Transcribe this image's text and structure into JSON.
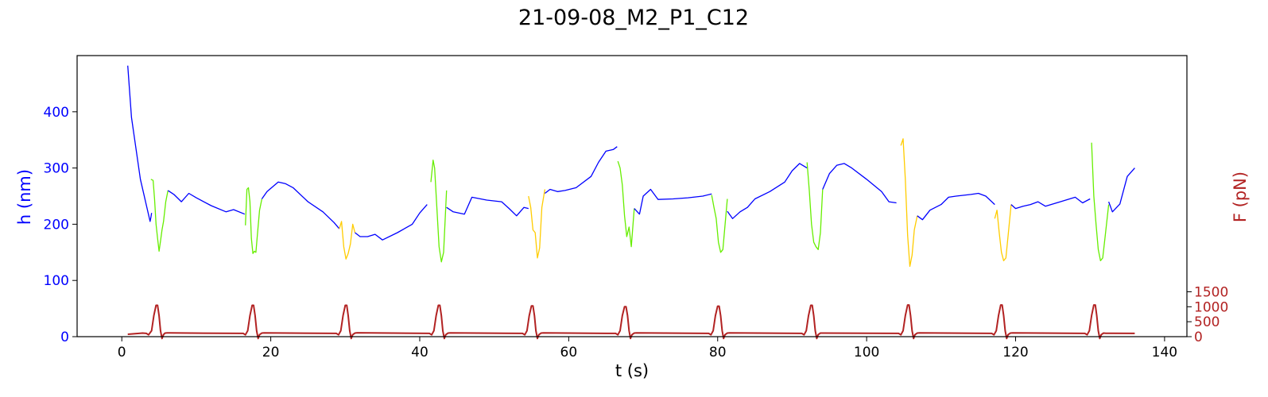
{
  "chart_data": {
    "type": "line",
    "title": "21-09-08_M2_P1_C12",
    "xlabel": "t (s)",
    "ylabel_left": "h (nm)",
    "ylabel_right": "F (pN)",
    "xlim": [
      -6,
      143
    ],
    "ylim_left": [
      0,
      500
    ],
    "ylim_right": [
      0,
      9400
    ],
    "xticks": [
      0,
      20,
      40,
      60,
      80,
      100,
      120,
      140
    ],
    "yticks_left": [
      0,
      100,
      200,
      300,
      400
    ],
    "yticks_right": [
      0,
      500,
      1000,
      1500
    ],
    "grid": false,
    "colors": {
      "h_baseline": "#0000ff",
      "h_compression_green": "#66ee00",
      "h_compression_yellow": "#ffcc00",
      "force": "#b22222",
      "left_axis_text": "#0000ff",
      "right_axis_text": "#b22222"
    },
    "series": [
      {
        "axis": "left",
        "color": "#0000ff",
        "x": [
          0.8,
          1.3,
          2.5,
          3.8,
          3.9,
          4.0
        ],
        "y": [
          482,
          390,
          280,
          205,
          212,
          220
        ]
      },
      {
        "axis": "left",
        "color": "#66ee00",
        "x": [
          3.9,
          4.2,
          4.4,
          4.6,
          4.8,
          5.0,
          5.2,
          5.4,
          5.6,
          5.9,
          6.2
        ],
        "y": [
          280,
          278,
          245,
          200,
          175,
          152,
          170,
          190,
          205,
          240,
          260
        ]
      },
      {
        "axis": "left",
        "color": "#0000ff",
        "x": [
          6.2,
          7,
          8,
          9,
          10,
          12,
          14,
          15,
          16.5
        ],
        "y": [
          260,
          253,
          240,
          255,
          247,
          233,
          222,
          226,
          218
        ]
      },
      {
        "axis": "left",
        "color": "#66ee00",
        "x": [
          16.6,
          16.8,
          17.0,
          17.2,
          17.4,
          17.6,
          17.8,
          18.0,
          18.2,
          18.5,
          18.8
        ],
        "y": [
          198,
          262,
          265,
          240,
          175,
          148,
          152,
          150,
          180,
          225,
          245
        ]
      },
      {
        "axis": "left",
        "color": "#0000ff",
        "x": [
          18.8,
          19.5,
          21,
          22,
          23,
          25,
          27,
          28.5,
          29.2
        ],
        "y": [
          245,
          258,
          275,
          272,
          265,
          240,
          222,
          203,
          192
        ]
      },
      {
        "axis": "left",
        "color": "#ffcc00",
        "x": [
          29.2,
          29.5,
          29.8,
          30.1,
          30.4,
          30.7,
          31.0,
          31.3
        ],
        "y": [
          192,
          205,
          160,
          138,
          148,
          165,
          200,
          185
        ]
      },
      {
        "axis": "left",
        "color": "#0000ff",
        "x": [
          31.3,
          32,
          33,
          34,
          35,
          37,
          39,
          40,
          41
        ],
        "y": [
          185,
          178,
          178,
          182,
          172,
          185,
          200,
          220,
          235
        ]
      },
      {
        "axis": "left",
        "color": "#66ee00",
        "x": [
          41.5,
          41.8,
          42.0,
          42.3,
          42.6,
          42.9,
          43.2,
          43.6
        ],
        "y": [
          275,
          314,
          300,
          230,
          160,
          133,
          150,
          260
        ]
      },
      {
        "axis": "left",
        "color": "#0000ff",
        "x": [
          43.6,
          44.5,
          46,
          47,
          49,
          51,
          52,
          53,
          54,
          54.6
        ],
        "y": [
          230,
          222,
          218,
          248,
          243,
          240,
          228,
          215,
          230,
          228
        ]
      },
      {
        "axis": "left",
        "color": "#ffcc00",
        "x": [
          54.6,
          54.9,
          55.2,
          55.5,
          55.8,
          56.1,
          56.4,
          56.8
        ],
        "y": [
          250,
          230,
          190,
          185,
          140,
          158,
          230,
          262
        ]
      },
      {
        "axis": "left",
        "color": "#0000ff",
        "x": [
          56.8,
          57.5,
          58.5,
          59.5,
          61,
          63,
          64,
          65,
          66,
          66.5
        ],
        "y": [
          255,
          262,
          258,
          260,
          265,
          285,
          310,
          330,
          333,
          338
        ]
      },
      {
        "axis": "left",
        "color": "#66ee00",
        "x": [
          66.6,
          66.9,
          67.2,
          67.5,
          67.8,
          68.1,
          68.4,
          68.8
        ],
        "y": [
          312,
          300,
          270,
          215,
          178,
          195,
          160,
          228
        ]
      },
      {
        "axis": "left",
        "color": "#0000ff",
        "x": [
          68.8,
          69.5,
          70,
          71,
          72,
          74,
          76,
          78,
          79.2
        ],
        "y": [
          228,
          218,
          250,
          262,
          244,
          245,
          247,
          250,
          254
        ]
      },
      {
        "axis": "left",
        "color": "#66ee00",
        "x": [
          79.2,
          79.5,
          79.8,
          80.1,
          80.4,
          80.7,
          81.0,
          81.3
        ],
        "y": [
          252,
          230,
          210,
          168,
          150,
          155,
          200,
          245
        ]
      },
      {
        "axis": "left",
        "color": "#0000ff",
        "x": [
          81.3,
          82,
          83,
          84,
          85,
          87,
          89,
          90,
          91,
          92
        ],
        "y": [
          223,
          210,
          222,
          230,
          245,
          258,
          275,
          295,
          308,
          300
        ]
      },
      {
        "axis": "left",
        "color": "#66ee00",
        "x": [
          92.0,
          92.3,
          92.6,
          92.9,
          93.2,
          93.5,
          93.8,
          94.1
        ],
        "y": [
          310,
          260,
          200,
          168,
          160,
          155,
          185,
          262
        ]
      },
      {
        "axis": "left",
        "color": "#0000ff",
        "x": [
          94.1,
          95,
          96,
          97,
          98,
          100,
          102,
          103,
          104
        ],
        "y": [
          262,
          290,
          305,
          308,
          300,
          280,
          258,
          240,
          238
        ]
      },
      {
        "axis": "left",
        "color": "#ffcc00",
        "x": [
          104.6,
          104.9,
          105.2,
          105.5,
          105.8,
          106.1,
          106.4,
          106.8
        ],
        "y": [
          340,
          352,
          280,
          180,
          125,
          145,
          190,
          215
        ]
      },
      {
        "axis": "left",
        "color": "#0000ff",
        "x": [
          106.8,
          107.5,
          108.5,
          110,
          111,
          112,
          114,
          115,
          116,
          117.2
        ],
        "y": [
          215,
          208,
          225,
          235,
          248,
          250,
          253,
          255,
          250,
          235
        ]
      },
      {
        "axis": "left",
        "color": "#ffcc00",
        "x": [
          117.2,
          117.5,
          117.8,
          118.1,
          118.4,
          118.7,
          119.0,
          119.4
        ],
        "y": [
          210,
          225,
          185,
          150,
          135,
          140,
          180,
          235
        ]
      },
      {
        "axis": "left",
        "color": "#0000ff",
        "x": [
          119.4,
          120,
          121,
          122,
          123,
          124,
          126,
          128,
          129,
          130
        ],
        "y": [
          235,
          228,
          232,
          235,
          240,
          232,
          240,
          248,
          238,
          245
        ]
      },
      {
        "axis": "left",
        "color": "#66ee00",
        "x": [
          130.2,
          130.5,
          130.8,
          131.1,
          131.4,
          131.7,
          132.0,
          132.5
        ],
        "y": [
          345,
          250,
          200,
          155,
          135,
          140,
          175,
          235
        ]
      },
      {
        "axis": "left",
        "color": "#0000ff",
        "x": [
          132.5,
          133,
          134,
          135,
          136
        ],
        "y": [
          240,
          222,
          236,
          285,
          300
        ]
      },
      {
        "axis": "right",
        "color": "#b22222",
        "x": [
          0.8,
          2.8,
          3.3,
          3.6,
          4.0,
          4.3,
          4.6,
          4.8,
          5.0,
          5.2,
          5.4,
          5.6,
          5.8,
          6.1,
          6.4,
          16.3,
          16.6,
          16.9,
          17.2,
          17.5,
          17.7,
          17.9,
          18.1,
          18.3,
          18.5,
          18.8,
          19.1,
          28.8,
          29.1,
          29.4,
          29.7,
          30.0,
          30.2,
          30.4,
          30.6,
          30.8,
          31.0,
          31.3,
          31.6,
          41.3,
          41.6,
          41.9,
          42.2,
          42.5,
          42.7,
          42.9,
          43.1,
          43.3,
          43.5,
          43.8,
          44.1,
          53.8,
          54.1,
          54.4,
          54.7,
          55.0,
          55.2,
          55.4,
          55.6,
          55.8,
          56.0,
          56.3,
          56.6,
          66.3,
          66.6,
          66.9,
          67.2,
          67.5,
          67.7,
          67.9,
          68.1,
          68.3,
          68.5,
          68.8,
          69.1,
          78.8,
          79.1,
          79.4,
          79.7,
          80.0,
          80.2,
          80.4,
          80.6,
          80.8,
          81.0,
          81.3,
          81.6,
          91.3,
          91.6,
          91.9,
          92.2,
          92.5,
          92.7,
          92.9,
          93.1,
          93.3,
          93.5,
          93.8,
          94.1,
          104.3,
          104.6,
          104.9,
          105.2,
          105.5,
          105.7,
          105.9,
          106.1,
          106.3,
          106.5,
          106.8,
          107.1,
          116.8,
          117.1,
          117.4,
          117.7,
          118.0,
          118.2,
          118.4,
          118.6,
          118.8,
          119.0,
          119.3,
          119.6,
          129.3,
          129.6,
          129.9,
          130.2,
          130.5,
          130.7,
          130.9,
          131.1,
          131.3,
          131.5,
          131.8,
          132.1,
          136
        ],
        "y": [
          80,
          120,
          110,
          60,
          200,
          700,
          1050,
          1050,
          700,
          200,
          -60,
          70,
          120,
          125,
          125,
          110,
          60,
          200,
          700,
          1050,
          1050,
          700,
          200,
          -60,
          70,
          120,
          125,
          110,
          60,
          200,
          700,
          1050,
          1050,
          700,
          200,
          -60,
          70,
          120,
          130,
          110,
          60,
          200,
          700,
          1050,
          1050,
          700,
          200,
          -60,
          70,
          120,
          125,
          110,
          60,
          200,
          700,
          1030,
          1030,
          700,
          200,
          -60,
          70,
          120,
          125,
          110,
          60,
          200,
          700,
          1000,
          1000,
          700,
          200,
          -60,
          70,
          120,
          125,
          110,
          60,
          200,
          700,
          1020,
          1020,
          700,
          200,
          -60,
          70,
          120,
          125,
          110,
          60,
          200,
          700,
          1050,
          1050,
          700,
          200,
          -60,
          70,
          120,
          120,
          110,
          60,
          200,
          700,
          1060,
          1060,
          700,
          200,
          -60,
          70,
          120,
          125,
          110,
          60,
          200,
          700,
          1060,
          1060,
          700,
          200,
          -60,
          70,
          120,
          125,
          110,
          60,
          200,
          700,
          1060,
          1060,
          700,
          200,
          -60,
          70,
          120,
          115,
          110
        ]
      }
    ]
  }
}
